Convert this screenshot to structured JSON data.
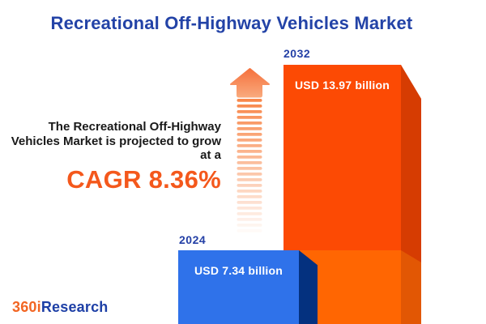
{
  "title": "Recreational Off-Highway Vehicles Market",
  "annotation": {
    "line1": "The Recreational Off-Highway",
    "line2": "Vehicles Market is projected to grow",
    "line3": "at a",
    "cagr": "CAGR 8.36%"
  },
  "chart_data": {
    "type": "bar",
    "title": "Recreational Off-Highway Vehicles Market",
    "categories": [
      "2024",
      "2032"
    ],
    "values": [
      7.34,
      13.97
    ],
    "value_unit": "USD billion",
    "value_labels": [
      "USD 7.34 billion",
      "USD 13.97 billion"
    ],
    "cagr_percent": 8.36,
    "legend": "none",
    "grid": false,
    "bars": [
      {
        "year": "2024",
        "label": "USD 7.34 billion",
        "value": 7.34,
        "front_color": "#2f72ea",
        "side_color": "#04317f"
      },
      {
        "year": "2032",
        "label": "USD 13.97 billion",
        "value": 13.97,
        "front_color": "#fc4a04",
        "side_color": "#d63c02",
        "base_front_color": "#ff6602",
        "base_side_color": "#e25704"
      }
    ]
  },
  "arrow": {
    "head_gradient_top": "#f5713d",
    "head_gradient_bottom": "#f9a97c",
    "stripe_color": "#f8874a",
    "stripe_count": 24
  },
  "logo": {
    "part1": "360i",
    "part2": "Research",
    "part1_color": "#f26522",
    "part2_color": "#1d3fa6"
  },
  "colors": {
    "title": "#2343a7",
    "year_label": "#2440a6",
    "cagr": "#f4581c",
    "body_text": "#191919",
    "background": "#ffffff"
  }
}
